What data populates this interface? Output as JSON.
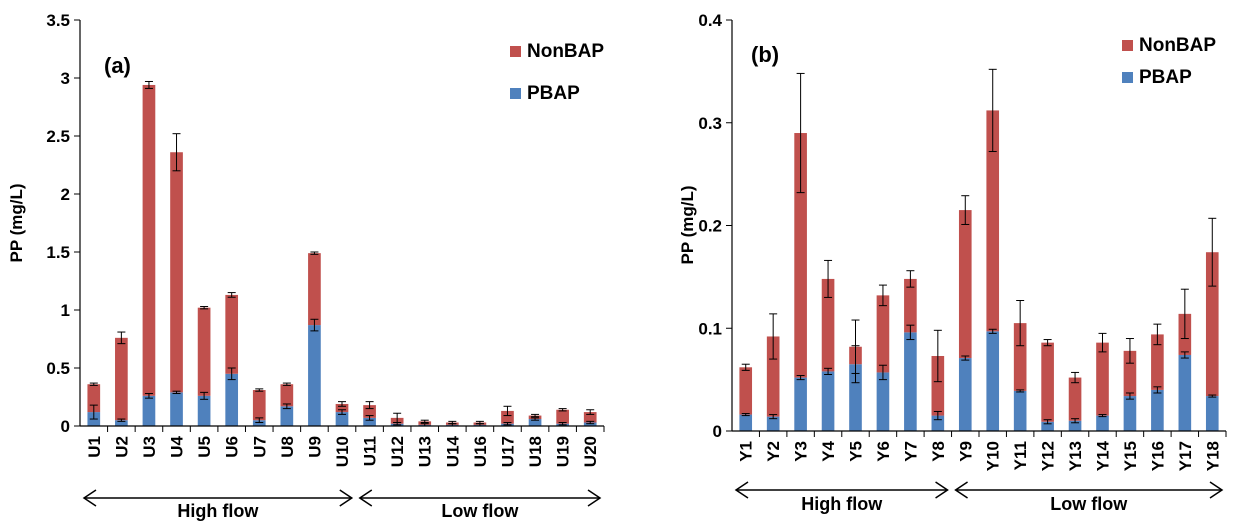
{
  "colors": {
    "pbap": "#4F81BD",
    "nonbap": "#C0504D",
    "axis": "#000000",
    "error": "#000000"
  },
  "chart_data": [
    {
      "type": "bar",
      "stacked": true,
      "panel_label": "(a)",
      "ylabel": "PP (mg/L)",
      "ylim": [
        0,
        3.5
      ],
      "yticks": [
        0,
        0.5,
        1,
        1.5,
        2,
        2.5,
        3,
        3.5
      ],
      "ytick_labels": [
        "0",
        "0.5",
        "1",
        "1.5",
        "2",
        "2.5",
        "3",
        "3.5"
      ],
      "grid": false,
      "legend_position": "top-right",
      "categories": [
        "U1",
        "U2",
        "U3",
        "U4",
        "U5",
        "U6",
        "U7",
        "U8",
        "U9",
        "U10",
        "U11",
        "U12",
        "U13",
        "U14",
        "U16",
        "U17",
        "U18",
        "U19",
        "U20"
      ],
      "series": [
        {
          "name": "PBAP",
          "color_key": "pbap",
          "values": [
            0.12,
            0.05,
            0.26,
            0.29,
            0.26,
            0.45,
            0.05,
            0.17,
            0.87,
            0.12,
            0.07,
            0.02,
            0.01,
            0.01,
            0.01,
            0.02,
            0.06,
            0.02,
            0.03
          ],
          "errors": [
            0.06,
            0.01,
            0.02,
            0.01,
            0.03,
            0.05,
            0.02,
            0.02,
            0.05,
            0.02,
            0.02,
            0.01,
            0.01,
            0.01,
            0.01,
            0.01,
            0.01,
            0.01,
            0.01
          ]
        },
        {
          "name": "NonBAP",
          "color_key": "nonbap",
          "values": [
            0.24,
            0.71,
            2.68,
            2.07,
            0.76,
            0.68,
            0.26,
            0.19,
            0.62,
            0.07,
            0.11,
            0.05,
            0.03,
            0.02,
            0.02,
            0.11,
            0.03,
            0.12,
            0.09
          ],
          "errors": [
            0.01,
            0.05,
            0.03,
            0.16,
            0.01,
            0.02,
            0.01,
            0.01,
            0.01,
            0.02,
            0.03,
            0.04,
            0.01,
            0.01,
            0.01,
            0.04,
            0.01,
            0.01,
            0.02
          ]
        }
      ],
      "groups": [
        {
          "label": "High flow",
          "from": "U1",
          "to": "U10"
        },
        {
          "label": "Low flow",
          "from": "U11",
          "to": "U20"
        }
      ]
    },
    {
      "type": "bar",
      "stacked": true,
      "panel_label": "(b)",
      "ylabel": "PP (mg/L)",
      "ylim": [
        0,
        0.4
      ],
      "yticks": [
        0,
        0.1,
        0.2,
        0.3,
        0.4
      ],
      "ytick_labels": [
        "0",
        "0.1",
        "0.2",
        "0.3",
        "0.4"
      ],
      "grid": false,
      "legend_position": "top-right",
      "categories": [
        "Y1",
        "Y2",
        "Y3",
        "Y4",
        "Y5",
        "Y6",
        "Y7",
        "Y8",
        "Y9",
        "Y10",
        "Y11",
        "Y12",
        "Y13",
        "Y14",
        "Y15",
        "Y16",
        "Y17",
        "Y18"
      ],
      "series": [
        {
          "name": "PBAP",
          "color_key": "pbap",
          "values": [
            0.016,
            0.014,
            0.052,
            0.058,
            0.065,
            0.057,
            0.096,
            0.015,
            0.071,
            0.097,
            0.039,
            0.009,
            0.01,
            0.015,
            0.034,
            0.04,
            0.074,
            0.034
          ],
          "errors": [
            0.001,
            0.002,
            0.002,
            0.003,
            0.018,
            0.007,
            0.007,
            0.004,
            0.002,
            0.002,
            0.001,
            0.002,
            0.002,
            0.001,
            0.003,
            0.003,
            0.003,
            0.001
          ]
        },
        {
          "name": "NonBAP",
          "color_key": "nonbap",
          "values": [
            0.046,
            0.078,
            0.238,
            0.09,
            0.017,
            0.075,
            0.052,
            0.058,
            0.144,
            0.215,
            0.066,
            0.077,
            0.042,
            0.071,
            0.044,
            0.054,
            0.04,
            0.14
          ],
          "errors": [
            0.003,
            0.022,
            0.058,
            0.018,
            0.026,
            0.01,
            0.008,
            0.025,
            0.014,
            0.04,
            0.022,
            0.003,
            0.005,
            0.009,
            0.012,
            0.01,
            0.024,
            0.033
          ]
        }
      ],
      "groups": [
        {
          "label": "High flow",
          "from": "Y1",
          "to": "Y8"
        },
        {
          "label": "Low flow",
          "from": "Y9",
          "to": "Y18"
        }
      ]
    }
  ]
}
